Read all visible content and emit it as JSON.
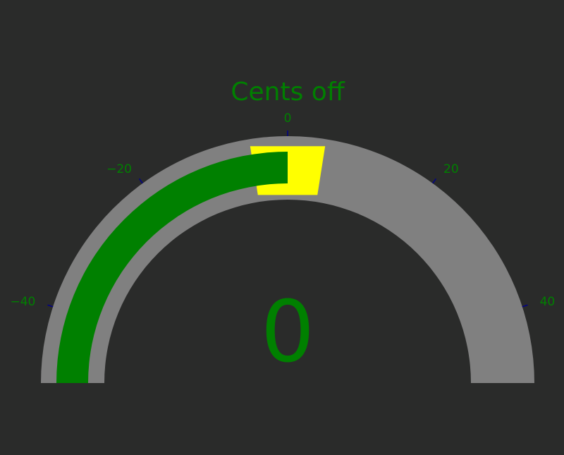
{
  "chart_data": {
    "type": "gauge",
    "title": "Cents off",
    "value": 0,
    "value_label": "0",
    "min": -50,
    "max": 50,
    "ticks": [
      {
        "value": -40,
        "label": "−40"
      },
      {
        "value": -20,
        "label": "−20"
      },
      {
        "value": 0,
        "label": "0"
      },
      {
        "value": 20,
        "label": "20"
      },
      {
        "value": 40,
        "label": "40"
      }
    ],
    "highlight_band": {
      "from": -5,
      "to": 5
    },
    "colors": {
      "background": "#2a2b2a",
      "track": "#808080",
      "fill": "#008000",
      "highlight": "#ffff00",
      "text": "#008000",
      "tick": "#00008b"
    }
  }
}
